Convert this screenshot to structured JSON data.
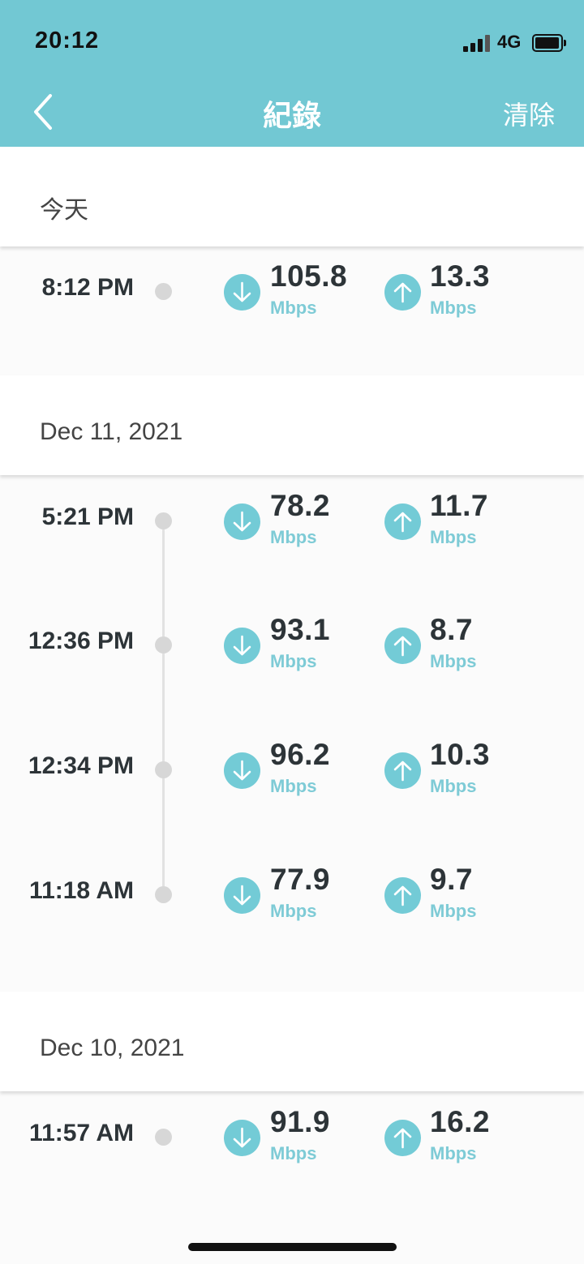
{
  "status_bar": {
    "time": "20:12",
    "network": "4G"
  },
  "header": {
    "title": "紀錄",
    "clear_label": "清除"
  },
  "sections": [
    {
      "label": "今天",
      "records": [
        {
          "time": "8:12 PM",
          "download": "105.8",
          "upload": "13.3",
          "unit": "Mbps"
        }
      ]
    },
    {
      "label": "Dec 11, 2021",
      "records": [
        {
          "time": "5:21 PM",
          "download": "78.2",
          "upload": "11.7",
          "unit": "Mbps"
        },
        {
          "time": "12:36 PM",
          "download": "93.1",
          "upload": "8.7",
          "unit": "Mbps"
        },
        {
          "time": "12:34 PM",
          "download": "96.2",
          "upload": "10.3",
          "unit": "Mbps"
        },
        {
          "time": "11:18 AM",
          "download": "77.9",
          "upload": "9.7",
          "unit": "Mbps"
        }
      ]
    },
    {
      "label": "Dec 10, 2021",
      "records": [
        {
          "time": "11:57 AM",
          "download": "91.9",
          "upload": "16.2",
          "unit": "Mbps"
        }
      ]
    }
  ]
}
